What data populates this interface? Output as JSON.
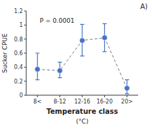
{
  "chart_data": {
    "type": "line",
    "categories": [
      "8<",
      "8-12",
      "12-16",
      "16-20",
      "20>"
    ],
    "values": [
      0.37,
      0.35,
      0.78,
      0.82,
      0.1
    ],
    "error_upper": [
      0.23,
      0.12,
      0.23,
      0.2,
      0.12
    ],
    "error_lower": [
      0.15,
      0.1,
      0.22,
      0.2,
      0.08
    ],
    "color": "#4472C4",
    "marker": "circle",
    "line_style": "dashed",
    "ylim": [
      0,
      1.2
    ],
    "yticks": [
      0,
      0.2,
      0.4,
      0.6,
      0.8,
      1,
      1.2
    ],
    "ylabel": "Sucker CPUE",
    "xlabel": "Temperature class",
    "xlabel2": "(°C)",
    "annotation": "P = 0.0001",
    "panel_label": "A)",
    "grid": false
  }
}
